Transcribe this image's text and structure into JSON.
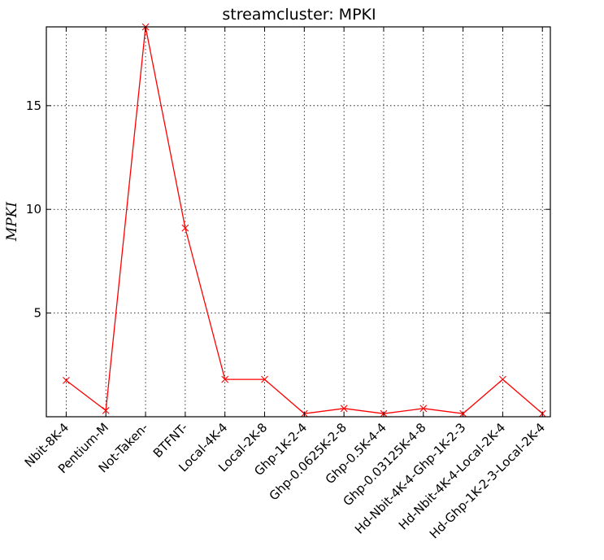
{
  "chart_data": {
    "type": "line",
    "title": "streamcluster: MPKI",
    "xlabel": "",
    "ylabel": "MPKI",
    "categories": [
      "Nbit-8K-4",
      "Pentium-M",
      "Not-Taken-",
      "BTFNT-",
      "Local-4K-4",
      "Local-2K-8",
      "Ghp-1K-2-4",
      "Ghp-0.0625K-2-8",
      "Ghp-0.5K-4-4",
      "Ghp-0.03125K-4-8",
      "Hd-Nbit-4K-4-Ghp-1K-2-3",
      "Hd-Nbit-4K-4-Local-2K-4",
      "Hd-Ghp-1K-2-3-Local-2K-4"
    ],
    "series": [
      {
        "color": "#ff0000",
        "marker": "x",
        "values": [
          1.75,
          0.3,
          18.8,
          9.1,
          1.8,
          1.8,
          0.15,
          0.4,
          0.15,
          0.4,
          0.15,
          1.8,
          0.15
        ]
      }
    ],
    "yticks": [
      5,
      10,
      15
    ],
    "ylim": [
      0,
      18.8
    ],
    "xlim": [
      -0.5,
      12.2
    ],
    "grid": true
  }
}
